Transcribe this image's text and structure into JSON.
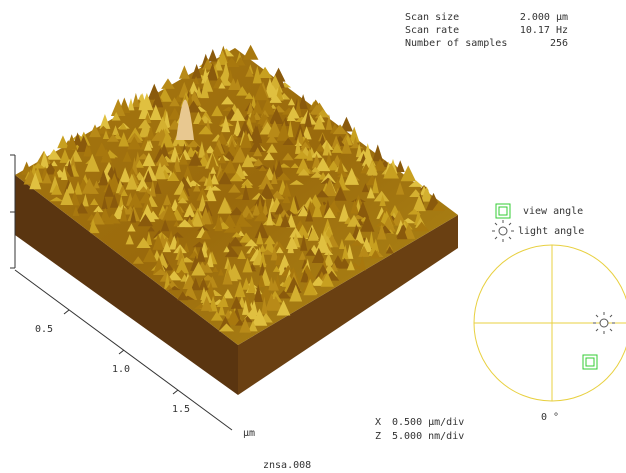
{
  "scan_info": [
    {
      "label": "Scan size",
      "value": "2.000 µm"
    },
    {
      "label": "Scan rate",
      "value": "10.17 Hz"
    },
    {
      "label": "Number of samples",
      "value": "256"
    }
  ],
  "axis": {
    "ticks": [
      "0.5",
      "1.0",
      "1.5"
    ],
    "unit": "µm"
  },
  "scale": [
    {
      "axis": "X",
      "value": "0.500 µm/div"
    },
    {
      "axis": "Z",
      "value": "5.000 nm/div"
    }
  ],
  "legend": {
    "view": "view angle",
    "light": "light angle"
  },
  "angle": "0 °",
  "filename": "znsa.008"
}
